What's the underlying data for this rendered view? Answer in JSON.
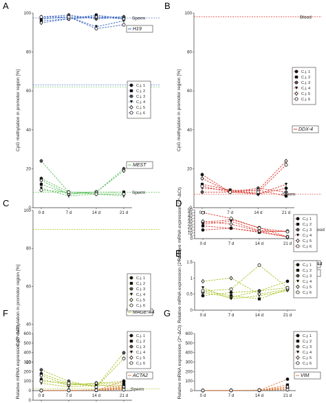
{
  "labels": {
    "sperm": "Sperm",
    "blood": "Blood",
    "ylabel_methylation": "CpG methylation in promotor region [%]",
    "ylabel_mrna": "Relative mRNA expression (2^-ΔCt)"
  },
  "colors": {
    "h19": "#2f5fbf",
    "mest": "#5cc05c",
    "ddx4": "#d9342b",
    "magea4": "#a8bf1f",
    "acta2": "#e07b3a",
    "vim": "#e07b3a",
    "axis": "#333333"
  },
  "chart_data": [
    {
      "panel": "A",
      "type": "line",
      "x": [
        "0 d",
        "7 d",
        "14 d",
        "21 d"
      ],
      "ylim": [
        0,
        100
      ],
      "yticks": [
        0,
        20,
        40,
        60,
        80,
        100
      ],
      "ylabel": "CpG methylation in promotor region [%]",
      "legend": [
        "C.j. 1",
        "C.j. 2",
        "C.j. 3",
        "C.j. 4",
        "C.j. 5",
        "C.j. 6"
      ],
      "genes": [
        {
          "name": "H19",
          "color": "#2f5fbf",
          "series": [
            [
              97,
              98,
              98,
              98
            ],
            [
              96,
              97,
              99,
              97
            ],
            [
              98,
              99,
              97,
              98
            ],
            [
              97,
              98,
              93,
              96
            ],
            [
              95,
              97,
              98,
              97
            ],
            [
              98,
              98,
              92,
              94
            ]
          ]
        },
        {
          "name": "MEST",
          "color": "#5cc05c",
          "series": [
            [
              15,
              8,
              7,
              7
            ],
            [
              12,
              7,
              8,
              8
            ],
            [
              24,
              8,
              8,
              20
            ],
            [
              10,
              6,
              7,
              6
            ],
            [
              14,
              7,
              8,
              19
            ],
            [
              9,
              8,
              7,
              7
            ]
          ]
        }
      ],
      "refs": [
        {
          "label": "Sperm",
          "value": 97.5,
          "color": "#2f5fbf"
        },
        {
          "label": "Blood",
          "value": 63,
          "color": "#2f5fbf"
        },
        {
          "label": "Blood",
          "value": 62,
          "color": "#5cc05c"
        },
        {
          "label": "Sperm",
          "value": 8,
          "color": "#5cc05c"
        }
      ]
    },
    {
      "panel": "B",
      "type": "line",
      "x": [
        "0 d",
        "7 d",
        "14 d",
        "21 d"
      ],
      "ylim": [
        0,
        100
      ],
      "yticks": [
        0,
        20,
        40,
        60,
        80,
        100
      ],
      "ylabel": "CpG methylation in promotor region [%]",
      "legend": [
        "C.j. 1",
        "C.j. 2",
        "C.j. 3",
        "C.j. 4",
        "C.j. 5",
        "C.j. 6"
      ],
      "genes": [
        {
          "name": "DDX-4",
          "color": "#d9342b",
          "series": [
            [
              17,
              8,
              7,
              10
            ],
            [
              12,
              9,
              9,
              6
            ],
            [
              8,
              8,
              10,
              8
            ],
            [
              10,
              9,
              7,
              12
            ],
            [
              15,
              8,
              9,
              24
            ],
            [
              11,
              8,
              8,
              22
            ]
          ]
        }
      ],
      "refs": [
        {
          "label": "Blood",
          "value": 98,
          "color": "#d9342b"
        },
        {
          "label": "Sperm",
          "value": 7,
          "color": "#d9342b"
        }
      ]
    },
    {
      "panel": "C",
      "type": "line",
      "x": [
        "0 d",
        "7 d",
        "14 d",
        "21 d"
      ],
      "ylim": [
        0,
        100
      ],
      "yticks": [
        0,
        20,
        40,
        60,
        80,
        100
      ],
      "ylabel": "CpG methylation in promotor region [%]",
      "legend": [
        "C.j. 1",
        "C.j. 2",
        "C.j. 3",
        "C.j. 4",
        "C.j. 5",
        "C.j. 6"
      ],
      "genes": [
        {
          "name": "MAGE-A4",
          "color": "#a8bf1f",
          "series": [
            [
              14,
              9,
              8,
              8
            ],
            [
              11,
              8,
              9,
              9
            ],
            [
              16,
              10,
              7,
              25
            ],
            [
              9,
              7,
              8,
              7
            ],
            [
              13,
              8,
              9,
              10
            ],
            [
              10,
              9,
              7,
              22
            ]
          ]
        }
      ],
      "refs": [
        {
          "label": "Blood",
          "value": 90,
          "color": "#a8bf1f"
        },
        {
          "label": "Sperm",
          "value": 6,
          "color": "#a8bf1f"
        }
      ]
    },
    {
      "panel": "D",
      "type": "line",
      "x": [
        "0 d",
        "7 d",
        "14 d",
        "21 d"
      ],
      "ylim": [
        0,
        50
      ],
      "yticks": [
        0,
        5,
        10,
        15,
        20,
        25,
        30,
        35,
        40,
        45,
        50
      ],
      "ylabel": "Relative mRNA expression (2^-ΔCt)",
      "legend": [
        "C.j. 1",
        "C.j. 2",
        "C.j. 3",
        "C.j. 4",
        "C.j. 5",
        "C.j. 6"
      ],
      "genes": [
        {
          "name": "DDX-4",
          "color": "#d9342b",
          "series": [
            [
              15,
              18,
              12,
              13
            ],
            [
              22,
              18,
              11,
              3
            ],
            [
              28,
              33,
              19,
              3
            ],
            [
              25,
              30,
              14,
              12
            ],
            [
              30,
              25,
              13,
              3
            ],
            [
              45,
              35,
              18,
              12
            ]
          ]
        }
      ],
      "refs": []
    },
    {
      "panel": "E",
      "type": "line",
      "x": [
        "0 d",
        "7 d",
        "14 d",
        "21 d"
      ],
      "ylim": [
        0,
        1.5
      ],
      "yticks": [
        0,
        0.5,
        1.0,
        1.5
      ],
      "ylabel": "Relative mRNA expression (2^-ΔCt)",
      "legend": [
        "C.j. 1",
        "C.j. 2",
        "C.j. 3",
        "C.j. 4",
        "C.j. 5",
        "C.j. 6"
      ],
      "genes": [
        {
          "name": "MAGE-A4",
          "color": "#a8bf1f",
          "series": [
            [
              0.45,
              0.55,
              0.6,
              0.9
            ],
            [
              0.6,
              0.45,
              0.35,
              0.65
            ],
            [
              0.55,
              0.4,
              0.6,
              0.7
            ],
            [
              0.7,
              0.35,
              0.45,
              0.6
            ],
            [
              0.9,
              1.0,
              0.5,
              0.65
            ],
            [
              0.6,
              0.65,
              1.4,
              0.7
            ]
          ]
        }
      ],
      "refs": []
    },
    {
      "panel": "F",
      "type": "line",
      "x": [
        "0 d",
        "7 d",
        "14 d",
        "21 d"
      ],
      "ylim": [
        0,
        600
      ],
      "yticks": [
        0,
        100,
        200,
        300,
        400,
        500,
        600
      ],
      "ylabel": "Relative mRNA expression (2^-ΔCt)",
      "legend": [
        "C.j. 1",
        "C.j. 2",
        "C.j. 3",
        "C.j. 4",
        "C.j. 5",
        "C.j. 6"
      ],
      "genes": [
        {
          "name": "ACTA2",
          "color": "#e07b3a",
          "series": [
            [
              1,
              2,
              4,
              100
            ],
            [
              1,
              2,
              3,
              60
            ],
            [
              1,
              1,
              5,
              30
            ],
            [
              1,
              2,
              8,
              20
            ],
            [
              1,
              3,
              6,
              40
            ],
            [
              1,
              2,
              5,
              10
            ]
          ]
        }
      ],
      "refs": []
    },
    {
      "panel": "G",
      "type": "line",
      "x": [
        "0 d",
        "7 d",
        "14 d",
        "21 d"
      ],
      "ylim": [
        0,
        600
      ],
      "yticks": [
        0,
        100,
        200,
        300,
        400,
        500,
        600
      ],
      "ylabel": "Relative mRNA expression (2^-ΔCt)",
      "legend": [
        "C.j. 1",
        "C.j. 2",
        "C.j. 3",
        "C.j. 4",
        "C.j. 5",
        "C.j. 6"
      ],
      "genes": [
        {
          "name": "VIM",
          "color": "#e07b3a",
          "series": [
            [
              1,
              2,
              4,
              120
            ],
            [
              1,
              2,
              3,
              60
            ],
            [
              1,
              1,
              5,
              30
            ],
            [
              1,
              2,
              6,
              15
            ],
            [
              1,
              3,
              4,
              40
            ],
            [
              1,
              2,
              5,
              10
            ]
          ]
        }
      ],
      "refs": []
    }
  ]
}
